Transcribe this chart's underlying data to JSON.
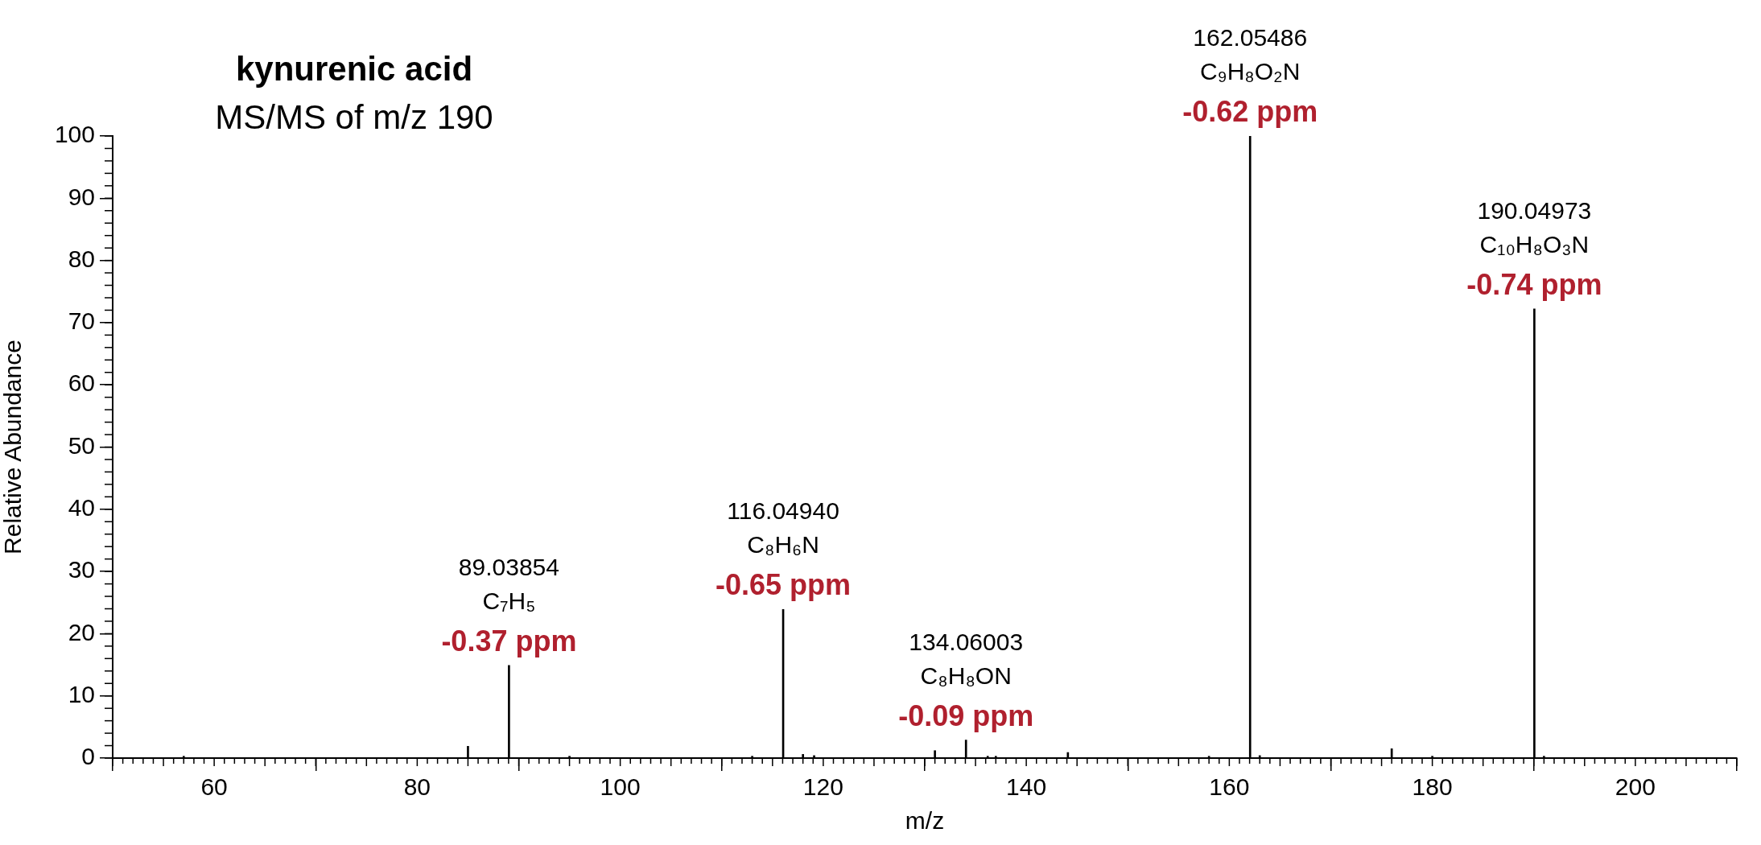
{
  "chart_data": {
    "type": "bar",
    "title": "kynurenic acid",
    "subtitle": "MS/MS of m/z 190",
    "xlabel": "m/z",
    "ylabel": "Relative Abundance",
    "x": [
      57.0,
      85.0,
      89.04,
      95.0,
      113.0,
      116.05,
      118.0,
      119.1,
      131.0,
      134.06,
      136.2,
      137.0,
      144.1,
      158.0,
      162.05,
      163.0,
      176.0,
      180.0,
      190.05,
      191.0
    ],
    "values": [
      0.3,
      1.9,
      14.9,
      0.3,
      0.3,
      23.9,
      0.6,
      0.4,
      1.2,
      2.9,
      0.3,
      0.3,
      0.9,
      0.3,
      100,
      0.4,
      1.5,
      0.3,
      72.2,
      0.3
    ],
    "color": "#000000",
    "xlim": [
      50,
      210
    ],
    "xticks": [
      60,
      80,
      100,
      120,
      140,
      160,
      180,
      200
    ],
    "ylim": [
      0,
      100
    ],
    "yticks": [
      0,
      10,
      20,
      30,
      40,
      50,
      60,
      70,
      80,
      90,
      100
    ],
    "grid": false,
    "annotations": [
      {
        "text": "89.03854\nC₇H₅\n-0.37 ppm",
        "x": 89.04,
        "y": 14.9
      },
      {
        "text": "116.04940\nC₈H₆N\n-0.65 ppm",
        "x": 116.05,
        "y": 23.9
      },
      {
        "text": "134.06003\nC₈H₈ON\n-0.09 ppm",
        "x": 134.06,
        "y": 2.9
      },
      {
        "text": "162.05486\nC₉H₈O₂N\n-0.62 ppm",
        "x": 162.05,
        "y": 100
      },
      {
        "text": "190.04973\nC₁₀H₈O₃N\n-0.74 ppm",
        "x": 190.05,
        "y": 72.2
      }
    ]
  }
}
